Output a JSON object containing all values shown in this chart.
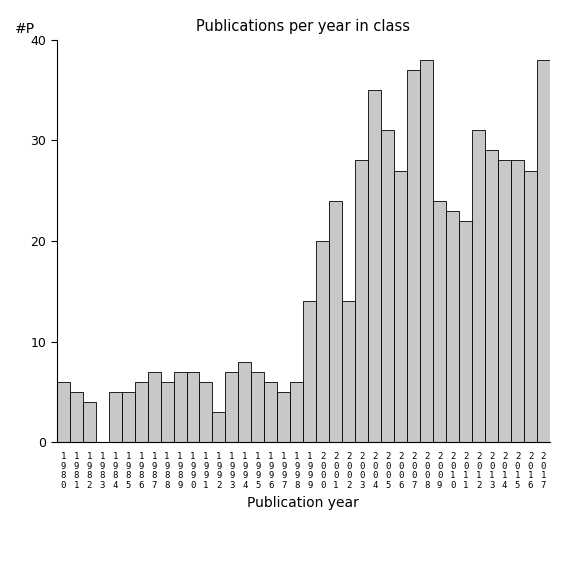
{
  "title": "Publications per year in class",
  "xlabel": "Publication year",
  "ylabel": "#P",
  "bar_color": "#c8c8c8",
  "bar_edgecolor": "#000000",
  "ylim": [
    0,
    40
  ],
  "yticks": [
    0,
    10,
    20,
    30,
    40
  ],
  "years": [
    1980,
    1981,
    1982,
    1983,
    1984,
    1985,
    1986,
    1987,
    1988,
    1989,
    1990,
    1991,
    1992,
    1993,
    1994,
    1995,
    1996,
    1997,
    1998,
    1999,
    2000,
    2001,
    2002,
    2003,
    2004,
    2005,
    2006,
    2007,
    2008,
    2009,
    2010,
    2011,
    2012,
    2013,
    2014,
    2015,
    2016,
    2017
  ],
  "values": [
    6,
    5,
    4,
    0,
    5,
    5,
    6,
    7,
    6,
    7,
    7,
    6,
    3,
    7,
    8,
    7,
    6,
    5,
    6,
    14,
    20,
    24,
    14,
    28,
    35,
    31,
    27,
    37,
    38,
    24,
    23,
    22,
    31,
    29,
    28,
    28,
    27,
    38
  ],
  "figsize": [
    5.67,
    5.67
  ],
  "dpi": 100
}
